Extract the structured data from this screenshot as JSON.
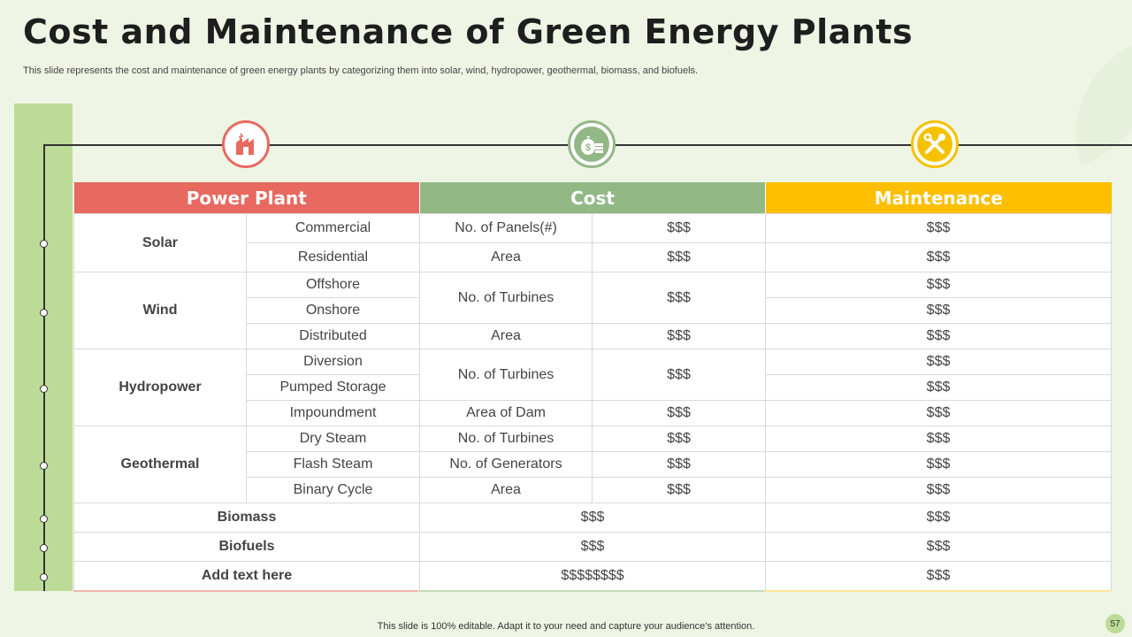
{
  "header": {
    "title": "Cost and Maintenance of Green Energy Plants",
    "subtitle": "This slide represents the cost and maintenance of green energy plants by categorizing them into solar, wind, hydropower, geothermal, biomass, and biofuels."
  },
  "icons": {
    "plant": "factory-icon",
    "cost": "money-bag-icon",
    "maintenance": "tools-icon"
  },
  "colors": {
    "plant": "#e8695f",
    "cost": "#92b886",
    "maintenance": "#f5c200",
    "side_bar": "#bcdb97",
    "background": "#eef5e5"
  },
  "table": {
    "headers": {
      "power_plant": "Power Plant",
      "cost": "Cost",
      "maintenance": "Maintenance"
    },
    "solar": {
      "name": "Solar",
      "rows": [
        {
          "type": "Commercial",
          "metric": "No. of Panels(#)",
          "cost": "$$$",
          "maintenance": "$$$"
        },
        {
          "type": "Residential",
          "metric": "Area",
          "cost": "$$$",
          "maintenance": "$$$"
        }
      ]
    },
    "wind": {
      "name": "Wind",
      "rows": [
        {
          "type": "Offshore",
          "maintenance": "$$$"
        },
        {
          "type": "Onshore",
          "maintenance": "$$$"
        },
        {
          "type": "Distributed",
          "maintenance": "$$$"
        }
      ],
      "cost_rows": [
        {
          "metric": "No. of Turbines",
          "cost": "$$$"
        },
        {
          "metric": "Area",
          "cost": "$$$"
        }
      ]
    },
    "hydropower": {
      "name": "Hydropower",
      "rows": [
        {
          "type": "Diversion",
          "maintenance": "$$$"
        },
        {
          "type": "Pumped Storage",
          "maintenance": "$$$"
        },
        {
          "type": "Impoundment",
          "maintenance": "$$$"
        }
      ],
      "cost_rows": [
        {
          "metric": "No. of Turbines",
          "cost": "$$$"
        },
        {
          "metric": "Area of Dam",
          "cost": "$$$"
        }
      ]
    },
    "geothermal": {
      "name": "Geothermal",
      "rows": [
        {
          "type": "Dry Steam",
          "metric": "No. of Turbines",
          "cost": "$$$",
          "maintenance": "$$$"
        },
        {
          "type": "Flash Steam",
          "metric": "No. of Generators",
          "cost": "$$$",
          "maintenance": "$$$"
        },
        {
          "type": "Binary Cycle",
          "metric": "Area",
          "cost": "$$$",
          "maintenance": "$$$"
        }
      ]
    },
    "biomass": {
      "name": "Biomass",
      "cost": "$$$",
      "maintenance": "$$$"
    },
    "biofuels": {
      "name": "Biofuels",
      "cost": "$$$",
      "maintenance": "$$$"
    },
    "extra": {
      "name": "Add text here",
      "cost": "$$$$$$$$",
      "maintenance": "$$$"
    }
  },
  "footer": {
    "text": "This slide is 100% editable. Adapt it to your need and capture your audience’s attention.",
    "page_number": "57"
  }
}
